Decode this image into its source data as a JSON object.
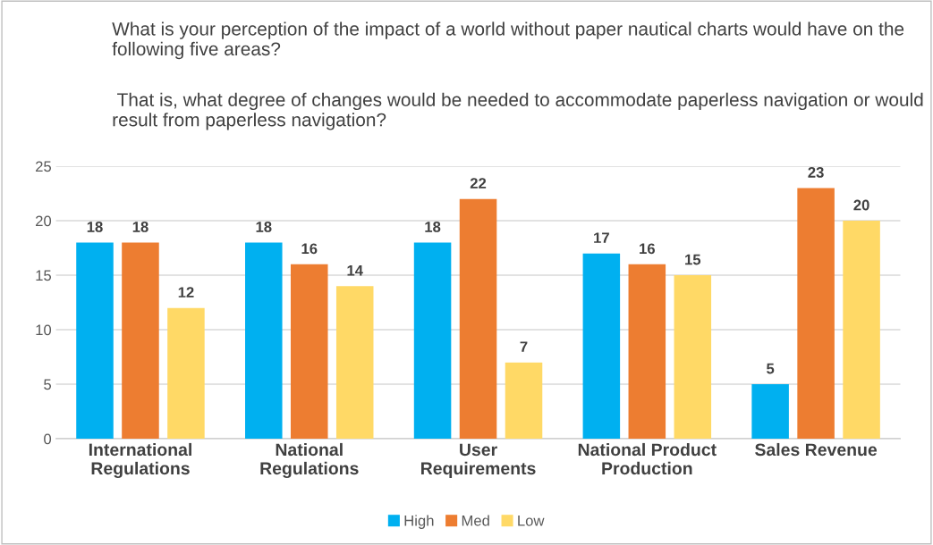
{
  "chart_data": {
    "type": "bar",
    "title": "What is your perception of the impact of a world without paper nautical charts would have on the following five areas?",
    "subtitle": " That is, what degree of changes would be needed to accommodate paperless navigation or would result from paperless navigation?",
    "categories": [
      "International\nRegulations",
      "National\nRegulations",
      "User\nRequirements",
      "National Product\nProduction",
      "Sales Revenue"
    ],
    "series": [
      {
        "name": "High",
        "color": "#00b0f0",
        "values": [
          18,
          18,
          18,
          17,
          5
        ]
      },
      {
        "name": "Med",
        "color": "#ed7d31",
        "values": [
          18,
          16,
          22,
          16,
          23
        ]
      },
      {
        "name": "Low",
        "color": "#ffd966",
        "values": [
          12,
          14,
          7,
          15,
          20
        ]
      }
    ],
    "ylim": [
      0,
      25
    ],
    "yticks": [
      0,
      5,
      10,
      15,
      20,
      25
    ],
    "grid": "y",
    "legend": "bottom",
    "data_labels": true
  }
}
